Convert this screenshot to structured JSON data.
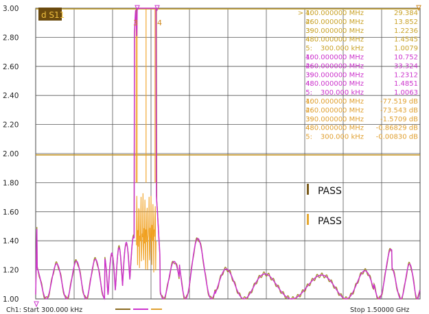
{
  "trace_label": "d S11",
  "y_ticks": [
    "3.00",
    "2.80",
    "2.60",
    "2.40",
    "2.20",
    "2.00",
    "1.80",
    "1.60",
    "1.40",
    "1.20",
    "1.00"
  ],
  "bottom": {
    "start": "Ch1: Start  300.000 kHz",
    "stop": "Stop  1.50000 GHz"
  },
  "limit_tests": [
    {
      "result": "PASS",
      "color": "#7a5a1a"
    },
    {
      "result": "PASS",
      "color": "#e6a830"
    }
  ],
  "marker_tables": [
    {
      "color": "#c9a227",
      "rows": [
        {
          "id": "> 1:",
          "freq": "400.000000 MHz",
          "value": "29.384"
        },
        {
          "id": "2:",
          "freq": "460.000000 MHz",
          "value": "13.852"
        },
        {
          "id": "3:",
          "freq": "390.000000 MHz",
          "value": "1.2236"
        },
        {
          "id": "4:",
          "freq": "480.000000 MHz",
          "value": "1.4545"
        },
        {
          "id": "5:",
          "freq": "300.000 kHz",
          "value": "1.0079"
        }
      ]
    },
    {
      "color": "#cc33cc",
      "rows": [
        {
          "id": "1:",
          "freq": "400.000000 MHz",
          "value": "10.752"
        },
        {
          "id": "2:",
          "freq": "460.000000 MHz",
          "value": "33.324"
        },
        {
          "id": "3:",
          "freq": "390.000000 MHz",
          "value": "1.2312"
        },
        {
          "id": "4:",
          "freq": "480.000000 MHz",
          "value": "1.4851"
        },
        {
          "id": "5:",
          "freq": "300.000 kHz",
          "value": "1.0063"
        }
      ]
    },
    {
      "color": "#e0a030",
      "rows": [
        {
          "id": "1:",
          "freq": "400.000000 MHz",
          "value": "-77.519 dB"
        },
        {
          "id": "2:",
          "freq": "460.000000 MHz",
          "value": "-73.543 dB"
        },
        {
          "id": "3:",
          "freq": "390.000000 MHz",
          "value": "-1.5709 dB"
        },
        {
          "id": "4:",
          "freq": "480.000000 MHz",
          "value": "-0.86829 dB"
        },
        {
          "id": "5:",
          "freq": "300.000 kHz",
          "value": "-0.00830 dB"
        }
      ]
    }
  ],
  "marker_flags": [
    "3",
    "4"
  ],
  "colors": {
    "trace_gold": "#a08a2a",
    "trace_magenta": "#cc33cc",
    "trace_orange": "#f0a020",
    "grid": "#555555",
    "limit_line": "#c8961e"
  },
  "chart_data": {
    "type": "line",
    "ylim": [
      1.0,
      3.0
    ],
    "xlim_mhz": [
      0.3,
      1500
    ],
    "ytick_step": 0.2,
    "limit_line_value": 2.0
  }
}
